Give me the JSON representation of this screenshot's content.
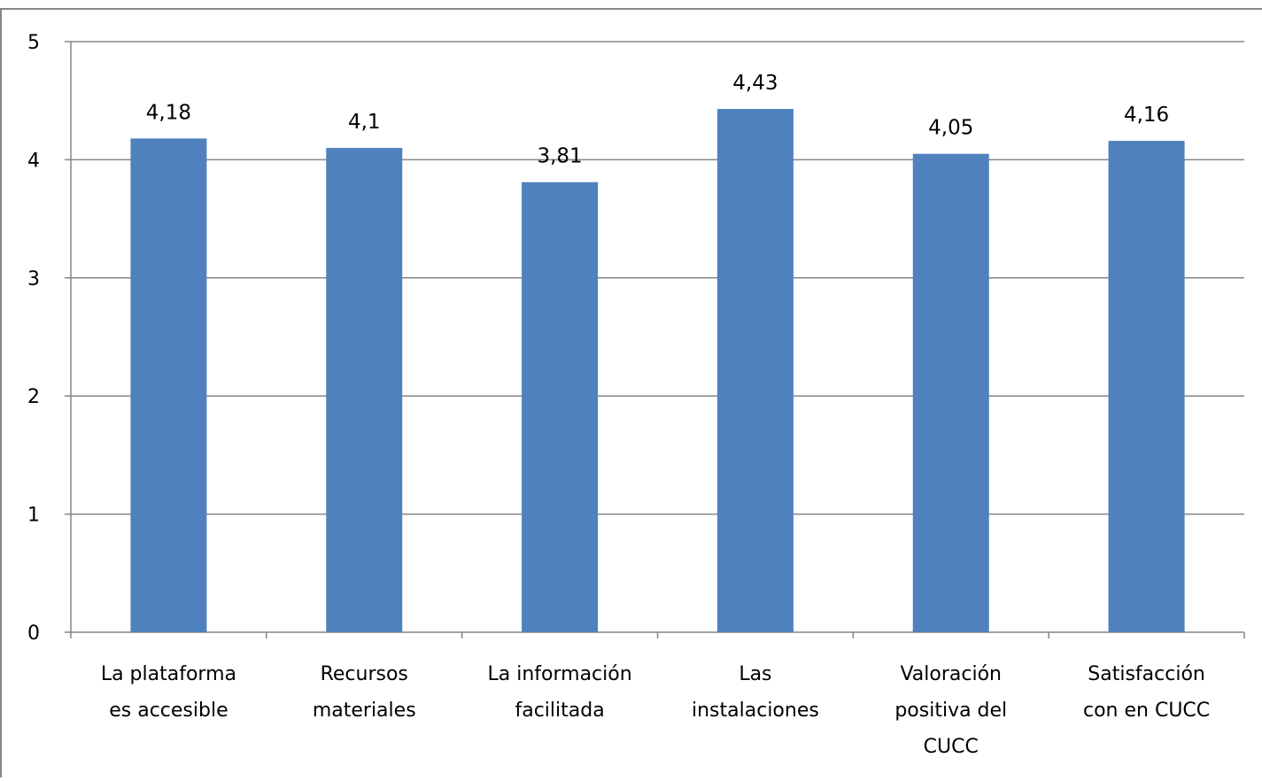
{
  "chart_data": {
    "type": "bar",
    "categories": [
      [
        "La plataforma",
        "es accesible"
      ],
      [
        "Recursos",
        "materiales"
      ],
      [
        "La información",
        "facilitada"
      ],
      [
        "Las",
        "instalaciones"
      ],
      [
        "Valoración",
        "positiva del",
        "CUCC"
      ],
      [
        "Satisfacción",
        "con en CUCC"
      ]
    ],
    "values": [
      4.18,
      4.1,
      3.81,
      4.43,
      4.05,
      4.16
    ],
    "value_labels": [
      "4,18",
      "4,1",
      "3,81",
      "4,43",
      "4,05",
      "4,16"
    ],
    "yticks": [
      "0",
      "1",
      "2",
      "3",
      "4",
      "5"
    ],
    "ylim": [
      0,
      5
    ],
    "grid": true,
    "legend": "none",
    "colors": {
      "bar": "#4F81BD",
      "grid": "#868686",
      "frame": "#868686"
    }
  }
}
